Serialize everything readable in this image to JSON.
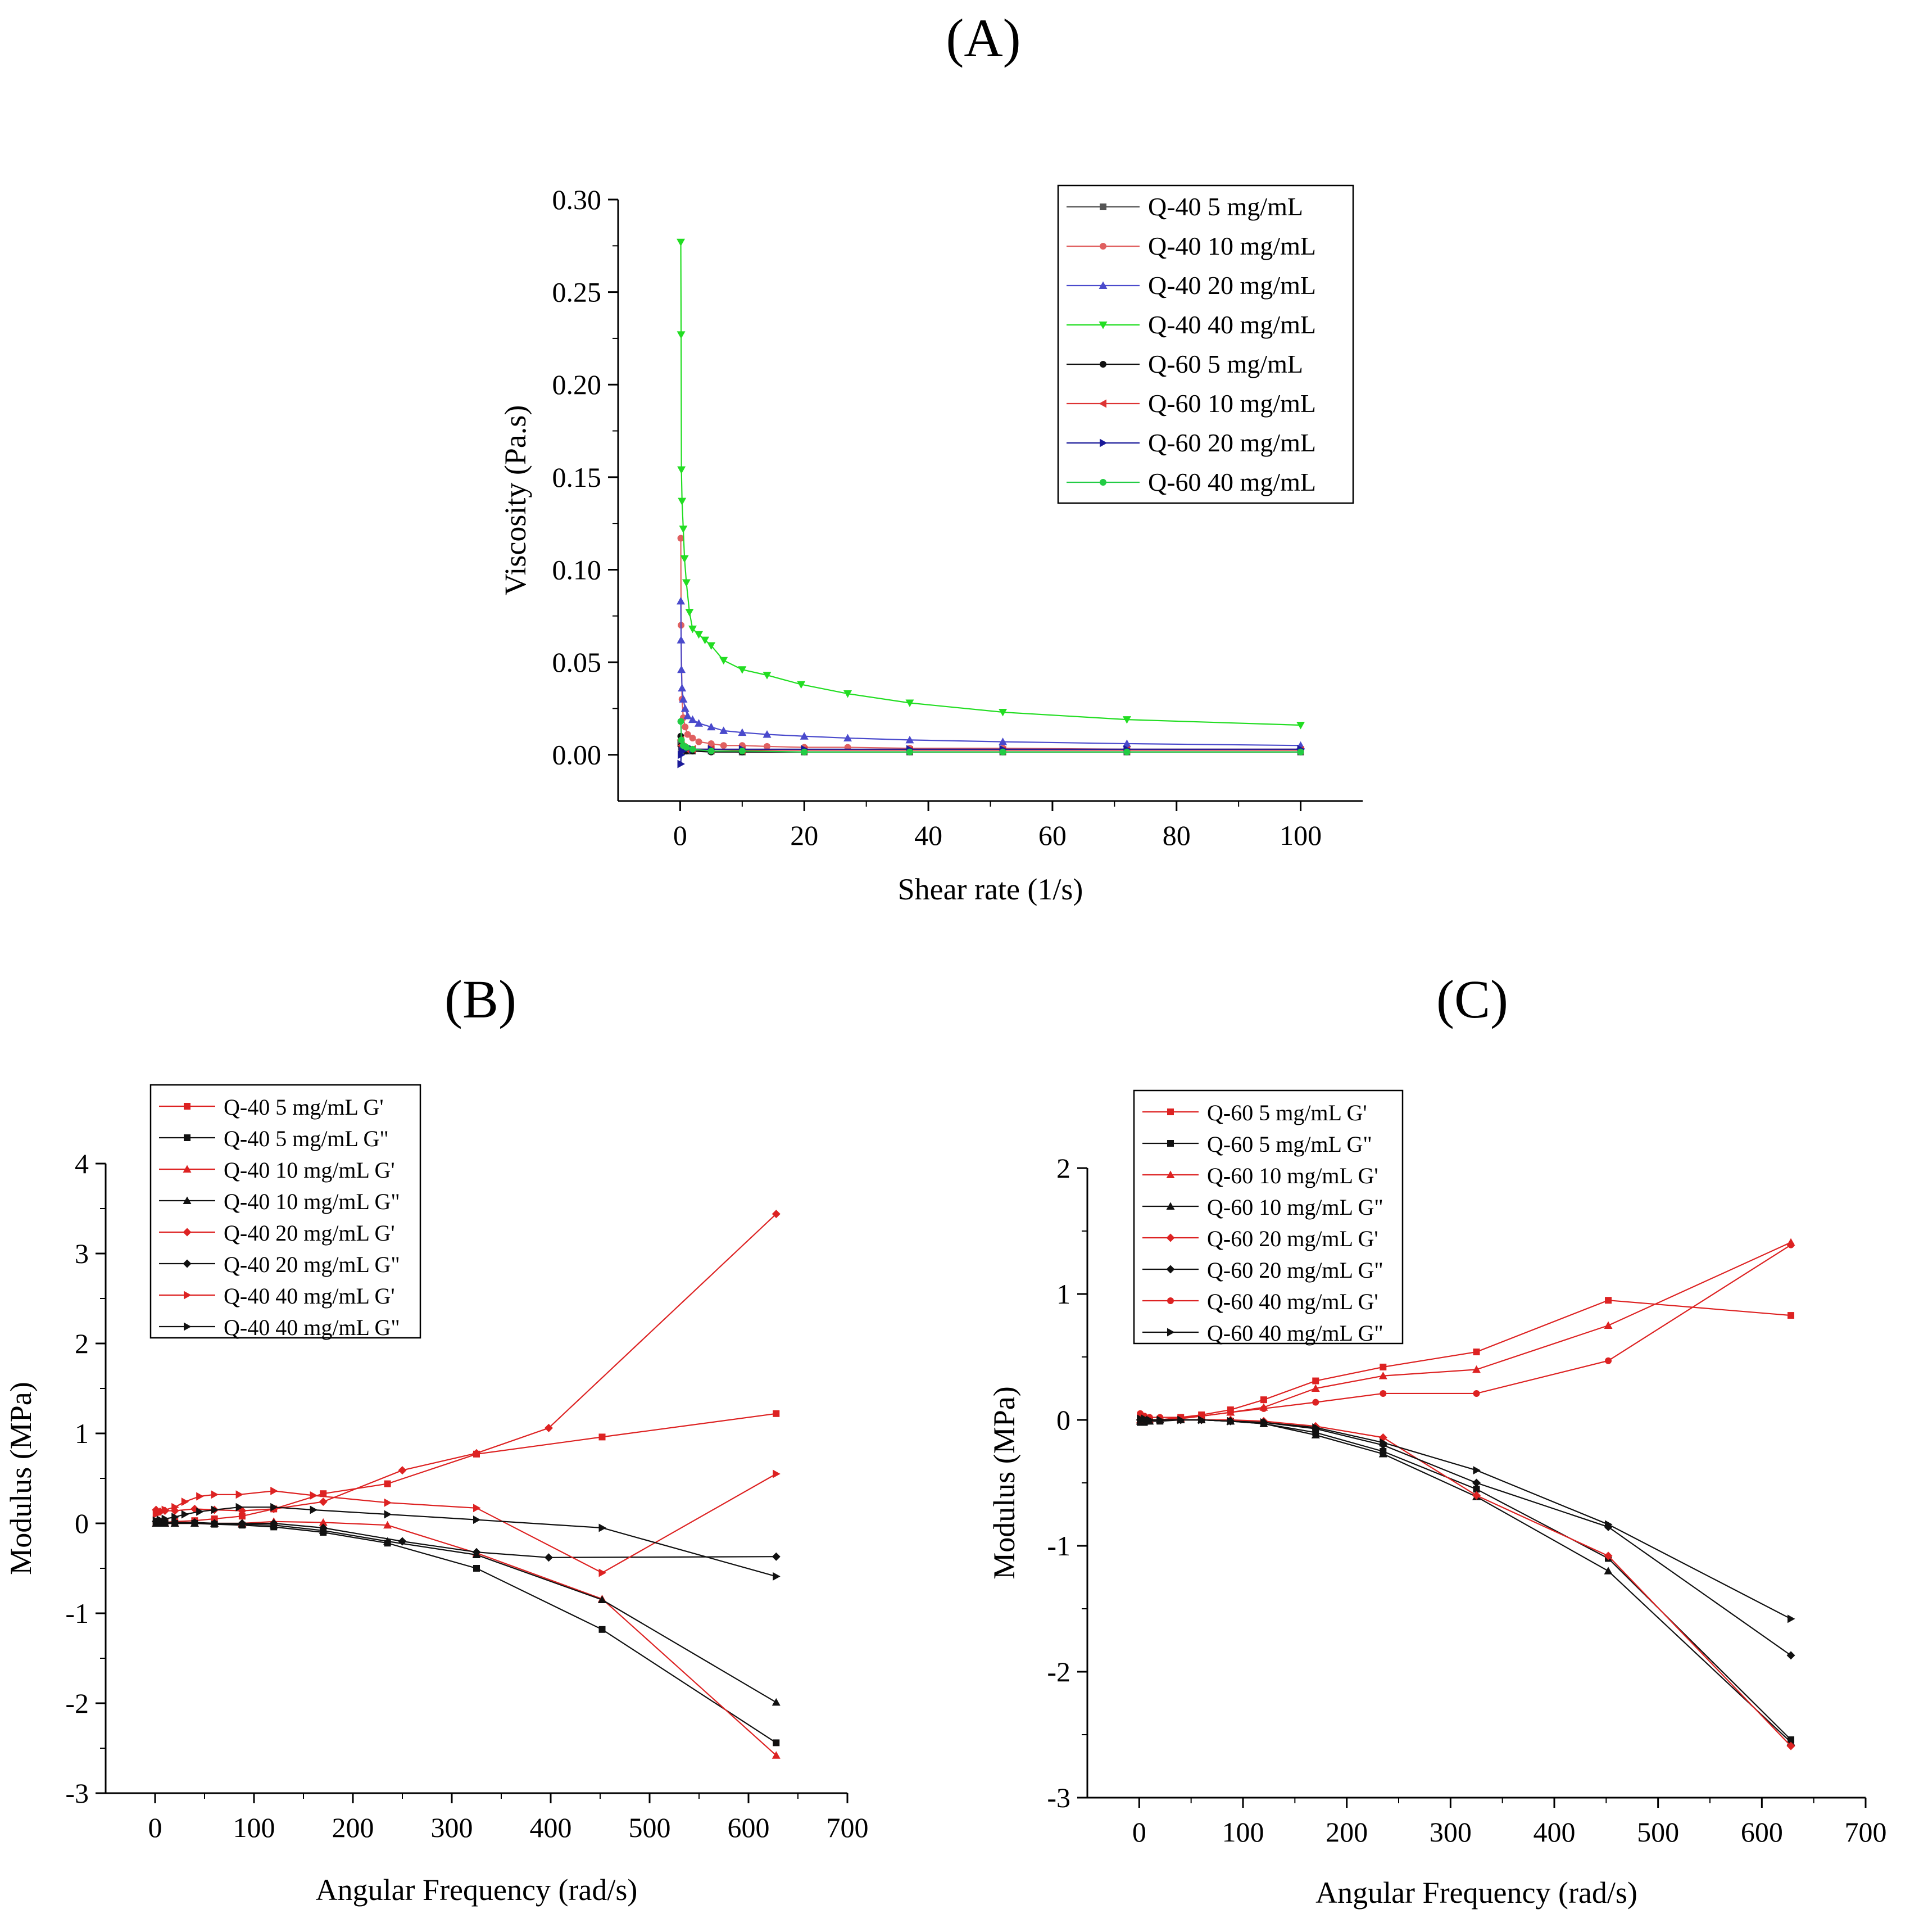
{
  "chart_data": [
    {
      "id": "A",
      "type": "line",
      "panel_label": "(A)",
      "title": "",
      "xlabel": "Shear rate (1/s)",
      "ylabel": "Viscosity (Pa.s)",
      "xlim": [
        -10,
        110
      ],
      "ylim": [
        -0.025,
        0.3
      ],
      "xticks": [
        0,
        20,
        40,
        60,
        80,
        100
      ],
      "xtick_labels": [
        "0",
        "20",
        "40",
        "60",
        "80",
        "100"
      ],
      "yticks": [
        0,
        0.05,
        0.1,
        0.15,
        0.2,
        0.25,
        0.3
      ],
      "ytick_labels": [
        "0.00",
        "0.05",
        "0.10",
        "0.15",
        "0.20",
        "0.25",
        "0.30"
      ],
      "legend_position": "top-right",
      "series": [
        {
          "name": "Q-40 5 mg/mL",
          "color": "#555555",
          "marker": "square",
          "x": [
            0.1,
            0.2,
            0.5,
            1,
            2,
            5,
            10,
            20,
            37,
            52,
            72,
            100
          ],
          "y": [
            0.006,
            0.004,
            0.003,
            0.002,
            0.002,
            0.002,
            0.0015,
            0.0015,
            0.0015,
            0.0015,
            0.0015,
            0.0015
          ]
        },
        {
          "name": "Q-40 10 mg/mL",
          "color": "#e06060",
          "marker": "circle",
          "x": [
            0.1,
            0.15,
            0.3,
            0.5,
            0.8,
            1.2,
            2,
            3,
            5,
            7,
            10,
            14,
            20,
            27,
            37,
            52,
            72,
            100
          ],
          "y": [
            0.117,
            0.07,
            0.03,
            0.02,
            0.015,
            0.011,
            0.009,
            0.007,
            0.006,
            0.005,
            0.005,
            0.0045,
            0.004,
            0.004,
            0.0035,
            0.0035,
            0.003,
            0.003
          ]
        },
        {
          "name": "Q-40 20 mg/mL",
          "color": "#4a4acc",
          "marker": "triangle-up",
          "x": [
            0.1,
            0.15,
            0.2,
            0.3,
            0.5,
            0.8,
            1.2,
            2,
            3,
            5,
            7,
            10,
            14,
            20,
            27,
            37,
            52,
            72,
            100
          ],
          "y": [
            0.083,
            0.062,
            0.046,
            0.036,
            0.03,
            0.025,
            0.021,
            0.019,
            0.017,
            0.015,
            0.013,
            0.012,
            0.011,
            0.01,
            0.009,
            0.008,
            0.007,
            0.006,
            0.005
          ]
        },
        {
          "name": "Q-40 40 mg/mL",
          "color": "#22dd22",
          "marker": "triangle-down",
          "x": [
            0.1,
            0.15,
            0.2,
            0.3,
            0.5,
            0.7,
            1,
            1.5,
            2,
            3,
            4,
            5,
            7,
            10,
            14,
            19.5,
            27,
            37,
            52,
            72,
            100
          ],
          "y": [
            0.277,
            0.227,
            0.154,
            0.137,
            0.122,
            0.106,
            0.093,
            0.077,
            0.068,
            0.065,
            0.062,
            0.059,
            0.051,
            0.046,
            0.043,
            0.038,
            0.033,
            0.028,
            0.023,
            0.019,
            0.016
          ]
        },
        {
          "name": "Q-60 5 mg/mL",
          "color": "#111111",
          "marker": "circle",
          "x": [
            0.1,
            0.2,
            0.5,
            1,
            2,
            5,
            10,
            20,
            37,
            52,
            72,
            100
          ],
          "y": [
            0.01,
            0.005,
            0.003,
            0.002,
            0.002,
            0.0015,
            0.0015,
            0.0015,
            0.0015,
            0.0015,
            0.0015,
            0.0015
          ]
        },
        {
          "name": "Q-60 10 mg/mL",
          "color": "#dd3333",
          "marker": "triangle-left",
          "x": [
            0.1,
            0.2,
            0.5,
            1,
            2,
            5,
            10,
            20,
            37,
            52,
            72,
            100
          ],
          "y": [
            0.008,
            0.005,
            0.004,
            0.003,
            0.003,
            0.003,
            0.0025,
            0.0025,
            0.0025,
            0.0025,
            0.0025,
            0.0025
          ]
        },
        {
          "name": "Q-60 20 mg/mL",
          "color": "#1a1a99",
          "marker": "triangle-right",
          "x": [
            0.1,
            0.15,
            0.3,
            0.5,
            1,
            2,
            5,
            10,
            20,
            37,
            52,
            72,
            100
          ],
          "y": [
            -0.005,
            0.0,
            0.002,
            0.003,
            0.003,
            0.003,
            0.003,
            0.003,
            0.003,
            0.003,
            0.003,
            0.003,
            0.003
          ]
        },
        {
          "name": "Q-60 40 mg/mL",
          "color": "#22cc44",
          "marker": "circle",
          "x": [
            0.1,
            0.2,
            0.5,
            1,
            2,
            5,
            10,
            20,
            37,
            52,
            72,
            100
          ],
          "y": [
            0.018,
            0.008,
            0.005,
            0.004,
            0.003,
            0.002,
            0.002,
            0.0015,
            0.0015,
            0.0015,
            0.0015,
            0.0015
          ]
        }
      ]
    },
    {
      "id": "B",
      "type": "line",
      "panel_label": "(B)",
      "title": "",
      "xlabel": "Angular Frequency (rad/s)",
      "ylabel": "Modulus (MPa)",
      "xlim": [
        -50,
        700
      ],
      "ylim": [
        -3,
        4
      ],
      "xticks": [
        0,
        100,
        200,
        300,
        400,
        500,
        600,
        700
      ],
      "xtick_labels": [
        "0",
        "100",
        "200",
        "300",
        "400",
        "500",
        "600",
        "700"
      ],
      "yticks": [
        -3,
        -2,
        -1,
        0,
        1,
        2,
        3,
        4
      ],
      "ytick_labels": [
        "-3",
        "-2",
        "-1",
        "0",
        "1",
        "2",
        "3",
        "4"
      ],
      "legend_position": "top-left",
      "series": [
        {
          "name": "Q-40 5 mg/mL G'",
          "color": "#dd2222",
          "marker": "square",
          "x": [
            1,
            5,
            10,
            20,
            40,
            60,
            88,
            120,
            170,
            235,
            325,
            452,
            628
          ],
          "y": [
            0.0,
            0.01,
            0.01,
            0.02,
            0.03,
            0.05,
            0.08,
            0.16,
            0.33,
            0.44,
            0.77,
            0.96,
            1.22
          ]
        },
        {
          "name": "Q-40 5 mg/mL G\"",
          "color": "#111111",
          "marker": "square",
          "x": [
            1,
            5,
            10,
            20,
            40,
            60,
            88,
            120,
            170,
            235,
            325,
            452,
            628
          ],
          "y": [
            0.0,
            0.0,
            0.0,
            0.0,
            0.0,
            -0.01,
            -0.02,
            -0.04,
            -0.1,
            -0.22,
            -0.5,
            -1.18,
            -2.44
          ]
        },
        {
          "name": "Q-40 10 mg/mL G'",
          "color": "#dd2222",
          "marker": "triangle-up",
          "x": [
            1,
            5,
            10,
            20,
            40,
            60,
            88,
            120,
            170,
            235,
            325,
            452,
            628
          ],
          "y": [
            0.0,
            0.0,
            0.0,
            0.0,
            0.0,
            0.0,
            0.0,
            0.02,
            0.01,
            -0.02,
            -0.33,
            -0.84,
            -2.58
          ]
        },
        {
          "name": "Q-40 10 mg/mL G\"",
          "color": "#111111",
          "marker": "triangle-up",
          "x": [
            1,
            5,
            10,
            20,
            40,
            60,
            88,
            120,
            170,
            235,
            325,
            452,
            628
          ],
          "y": [
            0.0,
            0.0,
            0.0,
            0.0,
            0.0,
            0.0,
            -0.01,
            -0.02,
            -0.08,
            -0.2,
            -0.35,
            -0.85,
            -1.99
          ]
        },
        {
          "name": "Q-40 20 mg/mL G'",
          "color": "#dd2222",
          "marker": "diamond",
          "x": [
            1,
            5,
            10,
            20,
            40,
            60,
            88,
            120,
            170,
            250,
            325,
            398,
            628
          ],
          "y": [
            0.15,
            0.13,
            0.14,
            0.14,
            0.16,
            0.15,
            0.14,
            0.16,
            0.24,
            0.59,
            0.78,
            1.06,
            3.44
          ]
        },
        {
          "name": "Q-40 20 mg/mL G\"",
          "color": "#111111",
          "marker": "diamond",
          "x": [
            1,
            5,
            10,
            20,
            40,
            60,
            88,
            120,
            170,
            250,
            325,
            398,
            628
          ],
          "y": [
            0.02,
            0.01,
            0.01,
            0.01,
            0.01,
            0.0,
            0.0,
            0.0,
            -0.05,
            -0.2,
            -0.32,
            -0.38,
            -0.37
          ]
        },
        {
          "name": "Q-40 40 mg/mL G'",
          "color": "#dd2222",
          "marker": "triangle-right",
          "x": [
            1,
            5,
            10,
            20,
            30,
            45,
            60,
            85,
            120,
            160,
            235,
            325,
            452,
            628
          ],
          "y": [
            0.1,
            0.12,
            0.15,
            0.18,
            0.24,
            0.3,
            0.32,
            0.32,
            0.36,
            0.31,
            0.23,
            0.17,
            -0.55,
            0.55
          ]
        },
        {
          "name": "Q-40 40 mg/mL G\"",
          "color": "#111111",
          "marker": "triangle-right",
          "x": [
            1,
            5,
            10,
            20,
            30,
            45,
            60,
            85,
            120,
            160,
            235,
            325,
            452,
            628
          ],
          "y": [
            0.03,
            0.04,
            0.05,
            0.07,
            0.1,
            0.13,
            0.15,
            0.18,
            0.18,
            0.15,
            0.1,
            0.04,
            -0.05,
            -0.59
          ]
        }
      ]
    },
    {
      "id": "C",
      "type": "line",
      "panel_label": "(C)",
      "title": "",
      "xlabel": "Angular Frequency (rad/s)",
      "ylabel": "Modulus (MPa)",
      "xlim": [
        -50,
        700
      ],
      "ylim": [
        -3,
        2
      ],
      "xticks": [
        0,
        100,
        200,
        300,
        400,
        500,
        600,
        700
      ],
      "xtick_labels": [
        "0",
        "100",
        "200",
        "300",
        "400",
        "500",
        "600",
        "700"
      ],
      "yticks": [
        -3,
        -2,
        -1,
        0,
        1,
        2
      ],
      "ytick_labels": [
        "-3",
        "-2",
        "-1",
        "0",
        "1",
        "2"
      ],
      "legend_position": "top-left",
      "series": [
        {
          "name": "Q-60 5 mg/mL G'",
          "color": "#dd2222",
          "marker": "square",
          "x": [
            1,
            5,
            10,
            20,
            40,
            60,
            88,
            120,
            170,
            235,
            325,
            452,
            628
          ],
          "y": [
            0.0,
            0.0,
            0.0,
            0.0,
            0.02,
            0.04,
            0.08,
            0.16,
            0.31,
            0.42,
            0.54,
            0.95,
            0.83
          ]
        },
        {
          "name": "Q-60 5 mg/mL G\"",
          "color": "#111111",
          "marker": "square",
          "x": [
            1,
            5,
            10,
            20,
            40,
            60,
            88,
            120,
            170,
            235,
            325,
            452,
            628
          ],
          "y": [
            -0.02,
            -0.02,
            -0.01,
            -0.01,
            0.0,
            0.0,
            -0.01,
            -0.03,
            -0.1,
            -0.25,
            -0.55,
            -1.1,
            -2.54
          ]
        },
        {
          "name": "Q-60 10 mg/mL G'",
          "color": "#dd2222",
          "marker": "triangle-up",
          "x": [
            1,
            5,
            10,
            20,
            40,
            60,
            88,
            120,
            170,
            235,
            325,
            452,
            628
          ],
          "y": [
            0.0,
            0.0,
            0.0,
            0.0,
            0.01,
            0.03,
            0.06,
            0.1,
            0.25,
            0.35,
            0.4,
            0.75,
            1.41
          ]
        },
        {
          "name": "Q-60 10 mg/mL G\"",
          "color": "#111111",
          "marker": "triangle-up",
          "x": [
            1,
            5,
            10,
            20,
            40,
            60,
            88,
            120,
            170,
            235,
            325,
            452,
            628
          ],
          "y": [
            -0.01,
            -0.01,
            -0.01,
            0.0,
            0.0,
            0.0,
            -0.01,
            -0.03,
            -0.12,
            -0.27,
            -0.61,
            -1.2,
            -2.56
          ]
        },
        {
          "name": "Q-60 20 mg/mL G'",
          "color": "#dd2222",
          "marker": "diamond",
          "x": [
            1,
            5,
            10,
            20,
            40,
            60,
            88,
            120,
            170,
            235,
            325,
            452,
            628
          ],
          "y": [
            0.0,
            0.0,
            0.0,
            0.0,
            0.0,
            0.0,
            0.0,
            -0.01,
            -0.05,
            -0.14,
            -0.6,
            -1.08,
            -2.59
          ]
        },
        {
          "name": "Q-60 20 mg/mL G\"",
          "color": "#111111",
          "marker": "diamond",
          "x": [
            1,
            5,
            10,
            20,
            40,
            60,
            88,
            120,
            170,
            235,
            325,
            452,
            628
          ],
          "y": [
            0.0,
            0.0,
            0.0,
            0.0,
            0.0,
            0.0,
            -0.01,
            -0.02,
            -0.07,
            -0.2,
            -0.5,
            -0.85,
            -1.87
          ]
        },
        {
          "name": "Q-60 40 mg/mL G'",
          "color": "#dd2222",
          "marker": "circle",
          "x": [
            1,
            5,
            10,
            20,
            40,
            60,
            88,
            120,
            170,
            235,
            325,
            452,
            628
          ],
          "y": [
            0.05,
            0.03,
            0.02,
            0.02,
            0.02,
            0.03,
            0.06,
            0.09,
            0.14,
            0.21,
            0.21,
            0.47,
            1.39
          ]
        },
        {
          "name": "Q-60 40 mg/mL G\"",
          "color": "#111111",
          "marker": "triangle-right",
          "x": [
            1,
            5,
            10,
            20,
            40,
            60,
            88,
            120,
            170,
            235,
            325,
            452,
            628
          ],
          "y": [
            0.01,
            0.01,
            0.0,
            0.0,
            0.0,
            0.0,
            -0.01,
            -0.02,
            -0.06,
            -0.18,
            -0.4,
            -0.83,
            -1.58
          ]
        }
      ]
    }
  ]
}
